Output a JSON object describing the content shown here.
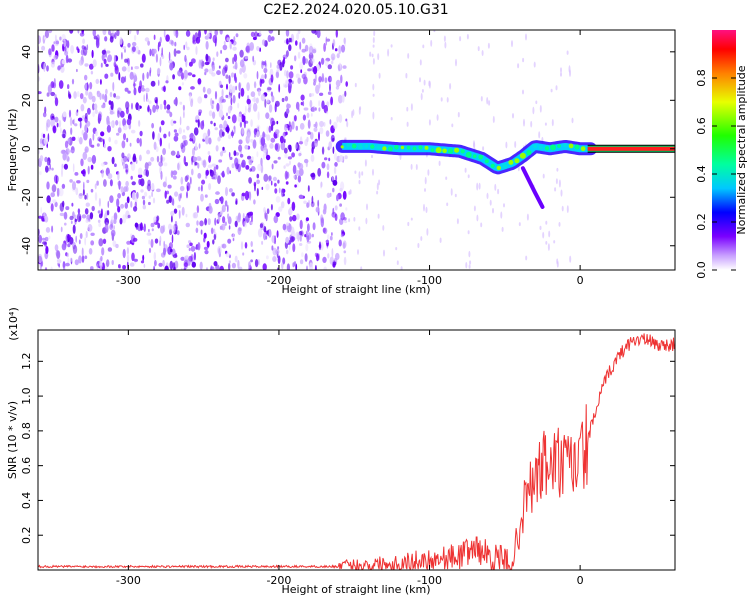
{
  "title": "C2E2.2024.020.05.10.G31",
  "chart_data": [
    {
      "type": "heatmap",
      "xlabel": "Height of straight line (km)",
      "ylabel": "Frequency (Hz)",
      "xlim": [
        -360,
        63
      ],
      "ylim": [
        -50,
        49
      ],
      "xticks": [
        -300,
        -200,
        -100,
        0
      ],
      "yticks": [
        -40,
        -20,
        0,
        20,
        40
      ],
      "colorbar": {
        "label": "Normalized spectral amplitude",
        "range": [
          0.0,
          1.0
        ],
        "ticks": [
          0.0,
          0.2,
          0.4,
          0.6,
          0.8
        ]
      },
      "features": {
        "noise_region_x": [
          -360,
          -155
        ],
        "signal_x_start": -158,
        "signal_track": [
          {
            "x": -158,
            "y": 1
          },
          {
            "x": -140,
            "y": 1
          },
          {
            "x": -120,
            "y": 0
          },
          {
            "x": -100,
            "y": 0
          },
          {
            "x": -80,
            "y": -1
          },
          {
            "x": -65,
            "y": -4
          },
          {
            "x": -55,
            "y": -8
          },
          {
            "x": -45,
            "y": -6
          },
          {
            "x": -38,
            "y": -3
          },
          {
            "x": -30,
            "y": 1
          },
          {
            "x": -20,
            "y": 0
          },
          {
            "x": -10,
            "y": 1
          },
          {
            "x": 0,
            "y": 0
          },
          {
            "x": 63,
            "y": 0
          }
        ]
      }
    },
    {
      "type": "line",
      "xlabel": "Height of straight line (km)",
      "ylabel": "SNR (10 * v/v)",
      "multiplier_label": "(x10⁴)",
      "xlim": [
        -360,
        63
      ],
      "ylim": [
        0,
        1.38
      ],
      "xticks": [
        -300,
        -200,
        -100,
        0
      ],
      "yticks": [
        0.2,
        0.4,
        0.6,
        0.8,
        1.0,
        1.2
      ],
      "series": [
        {
          "color": "#ee3333",
          "points": [
            [
              -360,
              0.02
            ],
            [
              -200,
              0.02
            ],
            [
              -160,
              0.02
            ],
            [
              -140,
              0.03
            ],
            [
              -120,
              0.04
            ],
            [
              -100,
              0.06
            ],
            [
              -80,
              0.08
            ],
            [
              -70,
              0.13
            ],
            [
              -60,
              0.08
            ],
            [
              -50,
              0.04
            ],
            [
              -45,
              0.05
            ],
            [
              -40,
              0.25
            ],
            [
              -35,
              0.45
            ],
            [
              -30,
              0.5
            ],
            [
              -25,
              0.6
            ],
            [
              -20,
              0.6
            ],
            [
              -15,
              0.62
            ],
            [
              -10,
              0.58
            ],
            [
              -5,
              0.6
            ],
            [
              0,
              0.62
            ],
            [
              5,
              0.75
            ],
            [
              10,
              0.9
            ],
            [
              15,
              1.05
            ],
            [
              20,
              1.15
            ],
            [
              25,
              1.22
            ],
            [
              30,
              1.28
            ],
            [
              35,
              1.32
            ],
            [
              40,
              1.33
            ],
            [
              45,
              1.32
            ],
            [
              50,
              1.3
            ],
            [
              55,
              1.29
            ],
            [
              63,
              1.3
            ]
          ]
        }
      ]
    }
  ]
}
